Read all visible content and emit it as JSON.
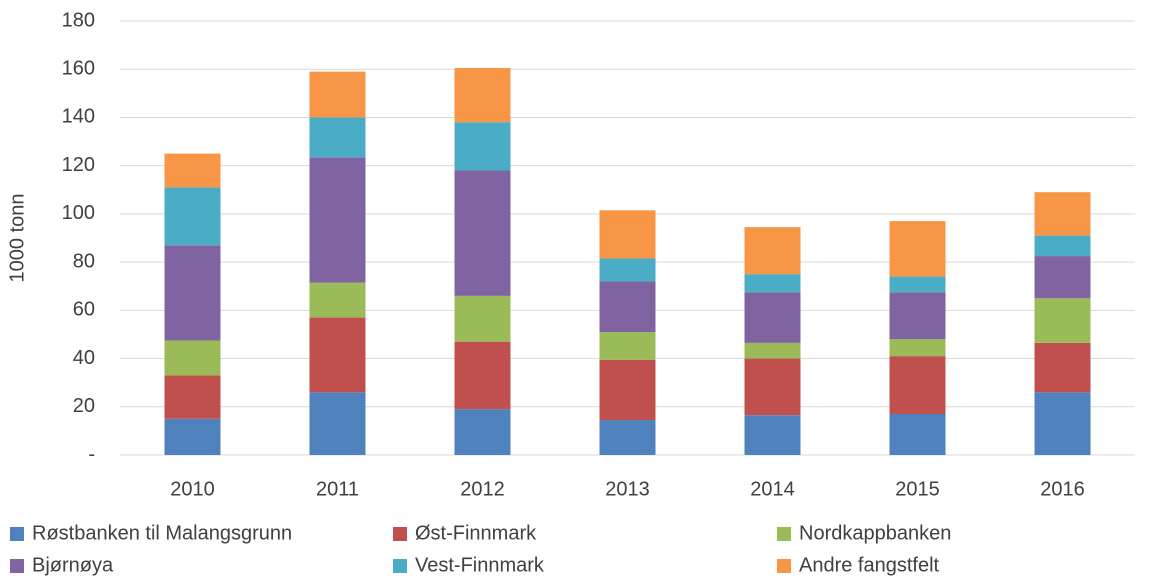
{
  "chart_data": {
    "type": "stacked_bar",
    "y_label": "1000 tonn",
    "categories": [
      "2010",
      "2011",
      "2012",
      "2013",
      "2014",
      "2015",
      "2016"
    ],
    "series": [
      {
        "name": "Røstbanken til Malangsgrunn",
        "color": "#4f81bd",
        "values": [
          15,
          26,
          19,
          14.5,
          16.5,
          17,
          26
        ]
      },
      {
        "name": "Øst-Finnmark",
        "color": "#c0504d",
        "values": [
          18,
          31,
          28,
          25,
          23.5,
          24,
          20.5
        ]
      },
      {
        "name": "Nordkappbanken",
        "color": "#9bbb59",
        "values": [
          14.5,
          14.5,
          19,
          11.5,
          6.5,
          7,
          18.5
        ]
      },
      {
        "name": "Bjørnøya",
        "color": "#8064a2",
        "values": [
          39.5,
          52,
          52,
          21,
          21,
          19.5,
          17.5
        ]
      },
      {
        "name": "Vest-Finnmark",
        "color": "#4bacc6",
        "values": [
          24,
          16.5,
          20,
          9.5,
          7.5,
          6.5,
          8.5
        ]
      },
      {
        "name": "Andre fangstfelt",
        "color": "#f79646",
        "values": [
          14,
          19,
          22.5,
          20,
          19.5,
          23,
          18
        ]
      }
    ],
    "ylim": [
      0,
      180
    ],
    "yticks": [
      {
        "value": 0,
        "label": "-"
      },
      20,
      40,
      60,
      80,
      100,
      120,
      140,
      160,
      180
    ],
    "grid": true
  }
}
